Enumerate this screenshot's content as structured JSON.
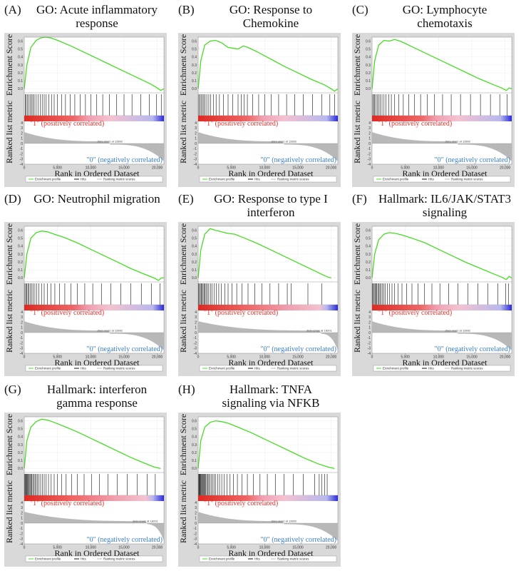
{
  "chart_data": [
    {
      "type": "line",
      "letter": "(A)",
      "title": "GO: Acute inflammatory response",
      "title_lines": [
        "GO: Acute inflammatory",
        "response"
      ],
      "ylabel_top": "Enrichment Score",
      "ylabel_bottom": "Ranked list metric",
      "xlabel": "Rank in Ordered Dataset",
      "es_ylim": [
        -0.05,
        0.65
      ],
      "es_yticks": [
        "0.6",
        "0.5",
        "0.4",
        "0.3",
        "0.2",
        "0.1",
        "0.0"
      ],
      "metric_yticks": [
        "4",
        "3",
        "2",
        "1",
        "0",
        "-1",
        "-2",
        "-3",
        "-4"
      ],
      "xlim": [
        0,
        21000
      ],
      "xticks": [
        "0",
        "5,000",
        "10,000",
        "15,000",
        "20,000"
      ],
      "es_curve": {
        "x": [
          0,
          400,
          1000,
          1800,
          2500,
          3200,
          4000,
          5000,
          7000,
          9000,
          11000,
          13000,
          15000,
          17000,
          19000,
          20000,
          20500,
          21000
        ],
        "y": [
          0.0,
          0.3,
          0.52,
          0.61,
          0.64,
          0.65,
          0.64,
          0.61,
          0.54,
          0.46,
          0.38,
          0.3,
          0.22,
          0.14,
          0.06,
          0.01,
          -0.02,
          0.0
        ]
      },
      "hits": [
        150,
        300,
        500,
        700,
        900,
        1100,
        1300,
        1500,
        1800,
        2100,
        2400,
        2700,
        3000,
        3300,
        3700,
        4100,
        4500,
        5000,
        5600,
        6200,
        6900,
        7600,
        8400,
        9200,
        10000,
        10900,
        11800,
        12800,
        13900,
        15000,
        16200,
        17500,
        18800,
        19900,
        20600
      ],
      "positive_label": "\"1\" (positively correlated)",
      "negative_label": "\"0\" (negatively correlated)",
      "zero_cross_label": "Zero cross at 12892",
      "zero_cross": 12892,
      "legend": [
        "Enrichment profile",
        "Hits",
        "Ranking metric scores"
      ]
    },
    {
      "type": "line",
      "letter": "(B)",
      "title": "GO: Response to Chemokine",
      "title_lines": [
        "GO: Response to",
        "Chemokine"
      ],
      "ylabel_top": "Enrichment Score",
      "ylabel_bottom": "Ranked list metric",
      "xlabel": "Rank in Ordered Dataset",
      "es_ylim": [
        -0.05,
        0.65
      ],
      "es_yticks": [
        "0.6",
        "0.5",
        "0.4",
        "0.3",
        "0.2",
        "0.1",
        "0.0"
      ],
      "metric_yticks": [
        "4",
        "3",
        "2",
        "1",
        "0",
        "-1",
        "-2",
        "-3",
        "-4"
      ],
      "xlim": [
        0,
        21000
      ],
      "xticks": [
        "0",
        "5,000",
        "10,000",
        "15,000",
        "20,000"
      ],
      "es_curve": {
        "x": [
          0,
          400,
          1000,
          1800,
          2600,
          3500,
          4500,
          6000,
          6800,
          7500,
          9000,
          11000,
          13000,
          15000,
          17000,
          19000,
          20000,
          20500,
          21000
        ],
        "y": [
          0.0,
          0.35,
          0.55,
          0.6,
          0.61,
          0.58,
          0.52,
          0.5,
          0.54,
          0.52,
          0.46,
          0.37,
          0.28,
          0.2,
          0.12,
          0.05,
          0.0,
          -0.03,
          0.0
        ]
      },
      "hits": [
        100,
        250,
        450,
        650,
        850,
        1050,
        1300,
        1600,
        1900,
        2300,
        2700,
        3200,
        3800,
        4500,
        5200,
        6000,
        6500,
        6900,
        7400,
        8200,
        9100,
        10000,
        11000,
        12100,
        13300,
        14500,
        15800,
        17200,
        18600,
        19800,
        20500
      ],
      "positive_label": "\"1\" (positively correlated)",
      "negative_label": "\"0\" (negatively correlated)",
      "zero_cross_label": "Zero cross at 12892",
      "zero_cross": 12892,
      "legend": [
        "Enrichment profile",
        "Hits",
        "Ranking metric scores"
      ]
    },
    {
      "type": "line",
      "letter": "(C)",
      "title": "GO: Lymphocyte chemotaxis",
      "title_lines": [
        "GO: Lymphocyte",
        "chemotaxis"
      ],
      "ylabel_top": "Enrichment Score",
      "ylabel_bottom": "Ranked list metric",
      "xlabel": "Rank in Ordered Dataset",
      "es_ylim": [
        -0.05,
        0.65
      ],
      "es_yticks": [
        "0.6",
        "0.5",
        "0.4",
        "0.3",
        "0.2",
        "0.1",
        "0.0"
      ],
      "metric_yticks": [
        "4",
        "3",
        "2",
        "1",
        "0",
        "-1",
        "-2",
        "-3",
        "-4"
      ],
      "xlim": [
        0,
        21000
      ],
      "xticks": [
        "0",
        "5,000",
        "10,000",
        "15,000",
        "20,000"
      ],
      "es_curve": {
        "x": [
          0,
          400,
          1000,
          1800,
          2600,
          3400,
          4200,
          5000,
          6000,
          8000,
          10000,
          12000,
          14000,
          16000,
          18000,
          19500,
          20200,
          20600,
          21000
        ],
        "y": [
          0.0,
          0.35,
          0.55,
          0.61,
          0.6,
          0.62,
          0.6,
          0.57,
          0.53,
          0.45,
          0.37,
          0.29,
          0.21,
          0.13,
          0.06,
          0.01,
          -0.02,
          0.01,
          0.0
        ]
      },
      "hits": [
        100,
        250,
        400,
        600,
        800,
        1000,
        1250,
        1500,
        1800,
        2100,
        2500,
        2900,
        3400,
        4000,
        4700,
        5500,
        6400,
        7300,
        8300,
        9400,
        10600,
        11900,
        13300,
        14800,
        16300,
        17800,
        19200,
        20300
      ],
      "positive_label": "\"1\" (positively correlated)",
      "negative_label": "\"0\" (negatively correlated)",
      "zero_cross_label": "Zero cross at 12892",
      "zero_cross": 12892,
      "legend": [
        "Enrichment profile",
        "Hits",
        "Ranking metric scores"
      ]
    },
    {
      "type": "line",
      "letter": "(D)",
      "title": "GO: Neutrophil migration",
      "title_lines": [
        "GO: Neutrophil migration"
      ],
      "ylabel_top": "Enrichment Score",
      "ylabel_bottom": "Ranked list metric",
      "xlabel": "Rank in Ordered Dataset",
      "es_ylim": [
        -0.05,
        0.65
      ],
      "es_yticks": [
        "0.6",
        "0.5",
        "0.4",
        "0.3",
        "0.2",
        "0.1",
        "0.0"
      ],
      "metric_yticks": [
        "4",
        "3",
        "2",
        "1",
        "0",
        "-1",
        "-2",
        "-3",
        "-4"
      ],
      "xlim": [
        0,
        21000
      ],
      "xticks": [
        "0",
        "5,000",
        "10,000",
        "15,000",
        "20,000"
      ],
      "es_curve": {
        "x": [
          0,
          400,
          1000,
          1800,
          2600,
          3500,
          4500,
          6000,
          8000,
          10000,
          12000,
          14000,
          16000,
          18000,
          19500,
          20200,
          20600,
          21000
        ],
        "y": [
          0.0,
          0.3,
          0.5,
          0.57,
          0.59,
          0.58,
          0.55,
          0.51,
          0.44,
          0.36,
          0.28,
          0.2,
          0.12,
          0.05,
          0.0,
          -0.03,
          0.0,
          0.0
        ]
      },
      "hits": [
        100,
        250,
        400,
        550,
        700,
        900,
        1100,
        1350,
        1600,
        1900,
        2200,
        2600,
        3000,
        3500,
        4000,
        4600,
        5300,
        6100,
        7000,
        8000,
        9100,
        10300,
        11600,
        13000,
        14500,
        16000,
        17600,
        19100,
        20400
      ],
      "positive_label": "\"1\" (positively correlated)",
      "negative_label": "\"0\" (negatively correlated)",
      "zero_cross_label": "Zero cross at 12892",
      "zero_cross": 12892,
      "legend": [
        "Enrichment profile",
        "Hits",
        "Ranking metric scores"
      ]
    },
    {
      "type": "line",
      "letter": "(E)",
      "title": "GO: Response to type I interferon",
      "title_lines": [
        "GO: Response to type I",
        "interferon"
      ],
      "ylabel_top": "Enrichment Score",
      "ylabel_bottom": "Ranked list metric",
      "xlabel": "Rank in Ordered Dataset",
      "es_ylim": [
        -0.05,
        0.65
      ],
      "es_yticks": [
        "0.6",
        "0.5",
        "0.4",
        "0.3",
        "0.2",
        "0.1",
        "0.0"
      ],
      "metric_yticks": [
        "4",
        "3",
        "2",
        "1",
        "0",
        "-1",
        "-2",
        "-3",
        "-4"
      ],
      "xlim": [
        0,
        21000
      ],
      "xticks": [
        "0",
        "5,000",
        "10,000",
        "15,000",
        "20,000"
      ],
      "es_curve": {
        "x": [
          0,
          400,
          1000,
          1800,
          2600,
          3500,
          4500,
          5500,
          7000,
          9000,
          11000,
          13000,
          15000,
          17000,
          18500,
          19500,
          20000
        ],
        "y": [
          0.0,
          0.35,
          0.55,
          0.62,
          0.6,
          0.58,
          0.56,
          0.55,
          0.5,
          0.43,
          0.35,
          0.27,
          0.19,
          0.11,
          0.05,
          0.01,
          0.0
        ]
      },
      "hits": [
        80,
        200,
        330,
        460,
        600,
        750,
        900,
        1050,
        1200,
        1400,
        1600,
        1850,
        2100,
        2400,
        2750,
        3100,
        3500,
        4000,
        4500,
        5100,
        5800,
        6600,
        7500,
        8500,
        9600,
        10800,
        12100,
        13400,
        14000,
        16500,
        18600
      ],
      "positive_label": "\"1\" (positively correlated)",
      "negative_label": "\"0\" (negatively correlated)",
      "zero_cross_label": "Zero cross at 18201",
      "zero_cross": 18201,
      "legend": [
        "Enrichment profile",
        "Hits",
        "Ranking metric scores"
      ]
    },
    {
      "type": "line",
      "letter": "(F)",
      "title": "Hallmark: IL6/JAK/STAT3 signaling",
      "title_lines": [
        "Hallmark: IL6/JAK/STAT3",
        "signaling"
      ],
      "ylabel_top": "Enrichment Score",
      "ylabel_bottom": "Ranked list metric",
      "xlabel": "Rank in Ordered Dataset",
      "es_ylim": [
        -0.05,
        0.65
      ],
      "es_yticks": [
        "0.6",
        "0.5",
        "0.4",
        "0.3",
        "0.2",
        "0.1",
        "0.0"
      ],
      "metric_yticks": [
        "4",
        "3",
        "2",
        "1",
        "0",
        "-1",
        "-2",
        "-3",
        "-4"
      ],
      "xlim": [
        0,
        21000
      ],
      "xticks": [
        "0",
        "5,000",
        "10,000",
        "15,000",
        "20,000"
      ],
      "es_curve": {
        "x": [
          0,
          400,
          1000,
          1800,
          2600,
          3500,
          4500,
          6000,
          8000,
          10000,
          12000,
          14000,
          16000,
          18000,
          19500,
          20200,
          20600,
          21000
        ],
        "y": [
          0.0,
          0.3,
          0.48,
          0.55,
          0.57,
          0.56,
          0.54,
          0.5,
          0.44,
          0.36,
          0.28,
          0.2,
          0.13,
          0.06,
          0.01,
          -0.02,
          0.02,
          0.0
        ]
      },
      "hits": [
        80,
        200,
        320,
        450,
        580,
        720,
        870,
        1020,
        1180,
        1350,
        1550,
        1750,
        2000,
        2300,
        2600,
        3000,
        3400,
        3900,
        4500,
        5200,
        6000,
        6900,
        7900,
        9000,
        10200,
        11500,
        12900,
        14400,
        15900,
        17400,
        18900,
        20100,
        20500
      ],
      "positive_label": "\"1\" (positively correlated)",
      "negative_label": "\"0\" (negatively correlated)",
      "zero_cross_label": "Zero cross at 12892",
      "zero_cross": 12892,
      "legend": [
        "Enrichment profile",
        "Hits",
        "Ranking metric scores"
      ]
    },
    {
      "type": "line",
      "letter": "(G)",
      "title": "Hallmark: interferon gamma response",
      "title_lines": [
        "Hallmark: interferon",
        "gamma response"
      ],
      "ylabel_top": "Enrichment Score",
      "ylabel_bottom": "Ranked list metric",
      "xlabel": "Rank in Ordered Dataset",
      "es_ylim": [
        -0.05,
        0.65
      ],
      "es_yticks": [
        "0.6",
        "0.5",
        "0.4",
        "0.3",
        "0.2",
        "0.1",
        "0.0"
      ],
      "metric_yticks": [
        "4",
        "3",
        "2",
        "1",
        "0",
        "-1",
        "-2",
        "-3",
        "-4"
      ],
      "xlim": [
        0,
        21000
      ],
      "xticks": [
        "0",
        "5,000",
        "10,000",
        "15,000",
        "20,000"
      ],
      "es_curve": {
        "x": [
          0,
          400,
          1000,
          1800,
          2600,
          3500,
          4500,
          6000,
          8000,
          10000,
          12000,
          14000,
          16000,
          18000,
          19500,
          20500
        ],
        "y": [
          0.0,
          0.35,
          0.52,
          0.59,
          0.62,
          0.61,
          0.58,
          0.53,
          0.46,
          0.38,
          0.3,
          0.22,
          0.14,
          0.07,
          0.02,
          0.0
        ]
      },
      "hits": [
        60,
        150,
        240,
        330,
        430,
        530,
        640,
        750,
        870,
        1000,
        1140,
        1290,
        1450,
        1620,
        1800,
        2000,
        2220,
        2460,
        2720,
        3000,
        3300,
        3650,
        4050,
        4500,
        5000,
        5600,
        6300,
        7100,
        8000,
        9000,
        10100,
        11300,
        12600,
        14000,
        15500,
        17000,
        18500,
        19700
      ],
      "positive_label": "\"1\" (positively correlated)",
      "negative_label": "\"0\" (negatively correlated)",
      "zero_cross_label": "Zero cross at 18201",
      "zero_cross": 18201,
      "legend": [
        "Enrichment profile",
        "Hits",
        "Ranking metric scores"
      ]
    },
    {
      "type": "line",
      "letter": "(H)",
      "title": "Hallmark: TNFA signaling via NFKB",
      "title_lines": [
        "Hallmark: TNFA",
        "signaling via NFKB"
      ],
      "ylabel_top": "Enrichment Score",
      "ylabel_bottom": "Ranked list metric",
      "xlabel": "Rank in Ordered Dataset",
      "es_ylim": [
        -0.05,
        0.65
      ],
      "es_yticks": [
        "0.6",
        "0.5",
        "0.4",
        "0.3",
        "0.2",
        "0.1",
        "0.0"
      ],
      "metric_yticks": [
        "4",
        "3",
        "2",
        "1",
        "0",
        "-1",
        "-2",
        "-3",
        "-4"
      ],
      "xlim": [
        0,
        21000
      ],
      "xticks": [
        "0",
        "5,000",
        "10,000",
        "15,000",
        "20,000"
      ],
      "es_curve": {
        "x": [
          0,
          400,
          1000,
          1800,
          2600,
          3500,
          4500,
          6000,
          8000,
          10000,
          12000,
          14000,
          16000,
          18000,
          19500,
          20500
        ],
        "y": [
          0.0,
          0.35,
          0.52,
          0.58,
          0.6,
          0.59,
          0.57,
          0.52,
          0.45,
          0.37,
          0.29,
          0.21,
          0.13,
          0.06,
          0.02,
          0.0
        ]
      },
      "hits": [
        60,
        140,
        220,
        300,
        390,
        480,
        580,
        680,
        790,
        900,
        1020,
        1150,
        1290,
        1440,
        1600,
        1780,
        1970,
        2180,
        2400,
        2650,
        2920,
        3220,
        3550,
        3920,
        4330,
        4800,
        5300,
        5900,
        6600,
        7400,
        8300,
        9300,
        10400,
        11600,
        12900,
        14300,
        15800,
        17500,
        18200,
        18600,
        19000,
        19400
      ],
      "positive_label": "\"1\" (positively correlated)",
      "negative_label": "\"0\" (negatively correlated)",
      "zero_cross_label": "Zero cross at 12892",
      "zero_cross": 12892,
      "legend": [
        "Enrichment profile",
        "Hits",
        "Ranking metric scores"
      ]
    }
  ],
  "colors": {
    "es_line": "#44dd22",
    "positive": "#e0302a",
    "negative": "#3b7fd0",
    "metric_fill": "#b8b8b8",
    "plot_bg": "#ffffff",
    "frame_bg": "#d9d9d9"
  }
}
